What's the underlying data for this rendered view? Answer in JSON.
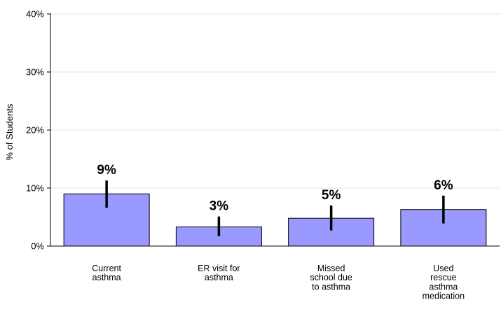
{
  "chart_data": {
    "type": "bar",
    "categories": [
      [
        "Current",
        "asthma"
      ],
      [
        "ER visit for",
        "asthma"
      ],
      [
        "Missed",
        "school due",
        "to asthma"
      ],
      [
        "Used",
        "rescue",
        "asthma",
        "medication"
      ]
    ],
    "values": [
      9,
      3.3,
      4.8,
      6.3
    ],
    "data_labels": [
      "9%",
      "3%",
      "5%",
      "6%"
    ],
    "error_low": [
      6.6,
      1.7,
      2.7,
      3.9
    ],
    "error_high": [
      11.3,
      5.1,
      7.0,
      8.7
    ],
    "ylabel": "% of Students",
    "xlabel": "",
    "ylim": [
      0,
      40
    ],
    "yticks": [
      0,
      10,
      20,
      30,
      40
    ],
    "ytick_labels": [
      "0%",
      "10%",
      "20%",
      "30%",
      "40%"
    ],
    "grid": true,
    "colors": {
      "bar_fill": "#9999ff",
      "bar_stroke": "#000000",
      "error_bar": "#000000",
      "grid": "#e6e6e6",
      "axis": "#000000"
    }
  }
}
